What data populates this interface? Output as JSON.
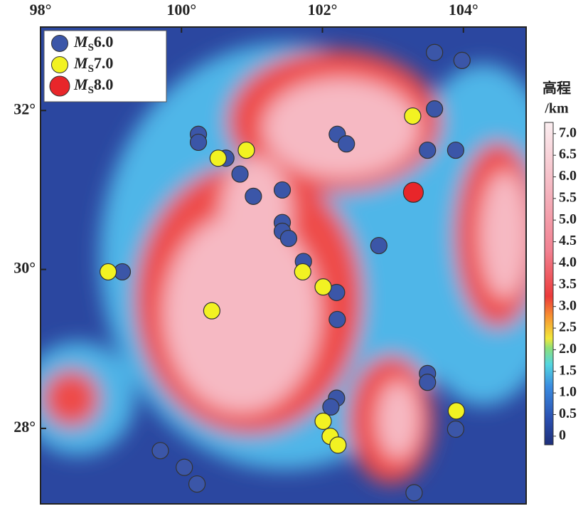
{
  "chart_data": {
    "type": "scatter",
    "xlim": [
      98,
      104.89
    ],
    "ylim": [
      27.05,
      33.05
    ],
    "xticks": [
      {
        "value": 98,
        "label": "98°"
      },
      {
        "value": 100,
        "label": "100°"
      },
      {
        "value": 102,
        "label": "102°"
      },
      {
        "value": 104,
        "label": "104°"
      }
    ],
    "yticks": [
      {
        "value": 28,
        "label": "28°"
      },
      {
        "value": 30,
        "label": "30°"
      },
      {
        "value": 32,
        "label": "32°"
      }
    ],
    "legend": "top-left",
    "series": [
      {
        "name_parts": [
          "M",
          "S",
          "6.0"
        ],
        "color": "#3b56a8",
        "x": [
          103.59,
          103.98,
          103.59,
          100.24,
          100.24,
          102.21,
          102.34,
          103.49,
          103.89,
          100.63,
          100.83,
          101.02,
          101.43,
          101.43,
          101.43,
          101.52,
          102.8,
          101.73,
          99.16,
          102.2,
          102.21,
          103.49,
          103.49,
          102.2,
          102.12,
          103.89,
          99.7,
          100.04,
          100.22,
          103.3
        ],
        "y": [
          32.73,
          32.63,
          32.02,
          31.7,
          31.6,
          31.7,
          31.58,
          31.5,
          31.5,
          31.4,
          31.2,
          30.92,
          31.0,
          30.59,
          30.48,
          30.39,
          30.3,
          30.1,
          29.97,
          29.71,
          29.37,
          28.69,
          28.58,
          28.38,
          28.27,
          27.99,
          27.72,
          27.51,
          27.3,
          27.19
        ]
      },
      {
        "name_parts": [
          "M",
          "S",
          "7.0"
        ],
        "color": "#f2f222",
        "x": [
          103.28,
          100.52,
          100.92,
          98.96,
          101.72,
          102.01,
          100.43,
          103.9,
          102.01,
          102.11,
          102.22
        ],
        "y": [
          31.93,
          31.4,
          31.5,
          29.97,
          29.97,
          29.78,
          29.48,
          28.22,
          28.09,
          27.9,
          27.79
        ]
      },
      {
        "name_parts": [
          "M",
          "S",
          "8.0"
        ],
        "color": "#e8262a",
        "x": [
          103.29
        ],
        "y": [
          30.97
        ]
      }
    ],
    "colorbar": {
      "title": [
        "高程",
        "/km"
      ],
      "lim": [
        -0.2,
        7.26
      ],
      "ticks": [
        0,
        {
          "value": 0.5,
          "label": "0.5"
        },
        {
          "value": 1,
          "label": "1.0"
        },
        {
          "value": 1.5,
          "label": "1.5"
        },
        {
          "value": 2,
          "label": "2.0"
        },
        {
          "value": 2.5,
          "label": "2.5"
        },
        {
          "value": 3,
          "label": "3.0"
        },
        {
          "value": 3.5,
          "label": "3.5"
        },
        {
          "value": 4,
          "label": "4.0"
        },
        {
          "value": 4.5,
          "label": "4.5"
        },
        {
          "value": 5,
          "label": "5.0"
        },
        {
          "value": 5.5,
          "label": "5.5"
        },
        {
          "value": 6,
          "label": "6.0"
        },
        {
          "value": 6.5,
          "label": "6.5"
        },
        {
          "value": 7,
          "label": "7.0"
        }
      ]
    }
  }
}
